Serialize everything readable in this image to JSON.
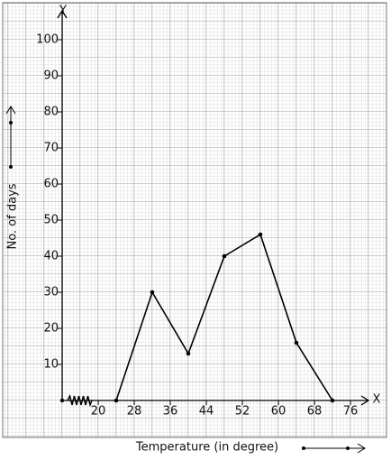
{
  "chart_data": {
    "type": "line",
    "x_label": "Temperature (in degree)",
    "y_label": "No. of days",
    "x_axis_name": "X",
    "y_axis_name": "Y",
    "x": [
      24,
      32,
      40,
      48,
      56,
      64,
      72
    ],
    "values": [
      0,
      30,
      13,
      40,
      46,
      16,
      0
    ],
    "color": "#000000",
    "xlim": [
      12,
      80
    ],
    "xticks": [
      20,
      28,
      36,
      44,
      52,
      60,
      68,
      76
    ],
    "ylim": [
      0,
      108
    ],
    "yticks": [
      10,
      20,
      30,
      40,
      50,
      60,
      70,
      80,
      90,
      100
    ],
    "grid": true
  }
}
